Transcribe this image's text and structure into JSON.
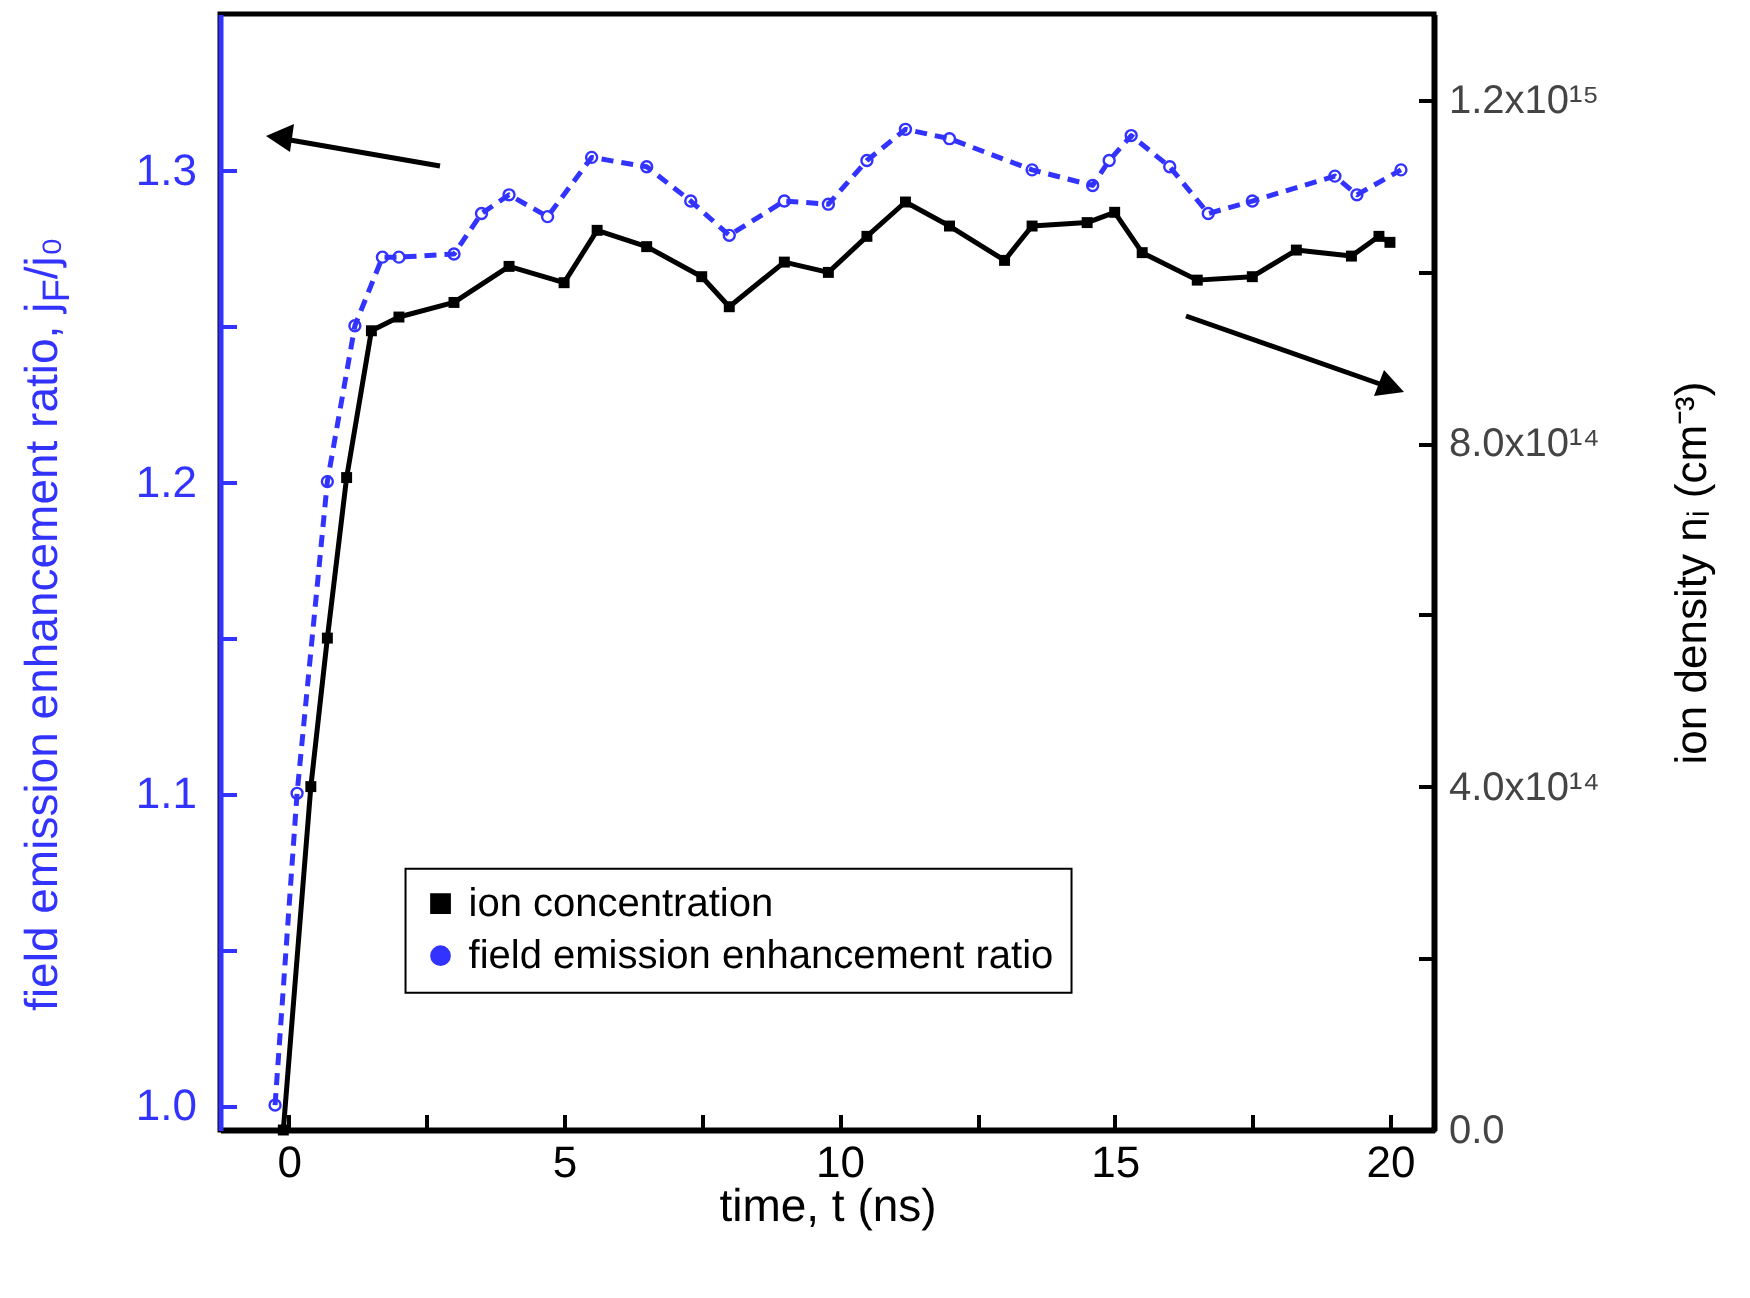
{
  "chart_data": {
    "type": "line",
    "xlabel": "time, t (ns)",
    "ylabel": "field emission enhancement ratio, j$_{F}$/j₀",
    "y2label": "ion density nᵢ (cm⁻³)",
    "xlim": [
      -1.25,
      20.8
    ],
    "xticks": [
      0,
      {
        "value": 2.5,
        "label": null
      },
      5,
      {
        "value": 7.5,
        "label": null
      },
      10,
      {
        "value": 12.5,
        "label": null
      },
      15,
      {
        "value": 17.5,
        "label": null
      },
      20
    ],
    "ylim": [
      0.992,
      1.35
    ],
    "yticks": [
      {
        "value": 1.0,
        "label": "1.0"
      },
      {
        "value": 1.05,
        "label": null
      },
      1.1,
      {
        "value": 1.15,
        "label": null
      },
      1.2,
      {
        "value": 1.25,
        "label": null
      },
      1.3
    ],
    "y2lim": [
      0,
      1300000000000000.0
    ],
    "y2ticks": [
      {
        "value": 0,
        "label": "0.0"
      },
      {
        "value": 200000000000000.0,
        "label": null
      },
      {
        "value": 400000000000000.0,
        "label": "4.0x10¹⁴"
      },
      {
        "value": 600000000000000.0,
        "label": null
      },
      {
        "value": 800000000000000.0,
        "label": "8.0x10¹⁴"
      },
      {
        "value": 1000000000000000.0,
        "label": null
      },
      {
        "value": 1200000000000000.0,
        "label": "1.2x10¹⁵"
      }
    ],
    "legend": "bottom",
    "grid": false,
    "series": [
      {
        "name": "ion concentration",
        "color": "#000000",
        "axis": "y2",
        "marker": "square",
        "line_style": "solid",
        "x": [
          -0.1,
          0.4,
          0.7,
          1.05,
          1.5,
          2,
          3,
          4,
          5,
          5.6,
          6.5,
          7.5,
          8,
          9,
          9.8,
          10.5,
          11.2,
          12,
          13,
          13.5,
          14.5,
          15,
          15.5,
          16.5,
          17.5,
          18.3,
          19.3,
          19.8,
          20
        ],
        "values": [
          0,
          400000000000000.0,
          573000000000000.0,
          760000000000000.0,
          931000000000000.0,
          947000000000000.0,
          964000000000000.0,
          1006000000000000.0,
          987000000000000.0,
          1048000000000000.0,
          1029000000000000.0,
          994000000000000.0,
          959000000000000.0,
          1011000000000000.0,
          999000000000000.0,
          1041000000000000.0,
          1081000000000000.0,
          1053000000000000.0,
          1013000000000000.0,
          1053000000000000.0,
          1057000000000000.0,
          1069000000000000.0,
          1022000000000000.0,
          990000000000000.0,
          994000000000000.0,
          1025000000000000.0,
          1018000000000000.0,
          1041000000000000.0,
          1034000000000000.0
        ]
      },
      {
        "name": "field emission enhancement ratio",
        "color": "#3333ff",
        "marker": "circle",
        "line_style": "dashed",
        "x": [
          -0.25,
          0.15,
          0.7,
          1.2,
          1.7,
          2,
          3,
          3.5,
          4,
          4.7,
          5.5,
          6.5,
          7.3,
          8,
          9,
          9.8,
          10.5,
          11.2,
          12,
          13.5,
          14.6,
          14.9,
          15.3,
          16,
          16.7,
          17.5,
          19,
          19.4,
          20.2
        ],
        "values": [
          1.0,
          1.1,
          1.2,
          1.25,
          1.272,
          1.272,
          1.273,
          1.286,
          1.292,
          1.285,
          1.304,
          1.301,
          1.29,
          1.279,
          1.29,
          1.289,
          1.303,
          1.313,
          1.31,
          1.3,
          1.295,
          1.303,
          1.311,
          1.301,
          1.286,
          1.29,
          1.298,
          1.292,
          1.3
        ]
      }
    ]
  }
}
